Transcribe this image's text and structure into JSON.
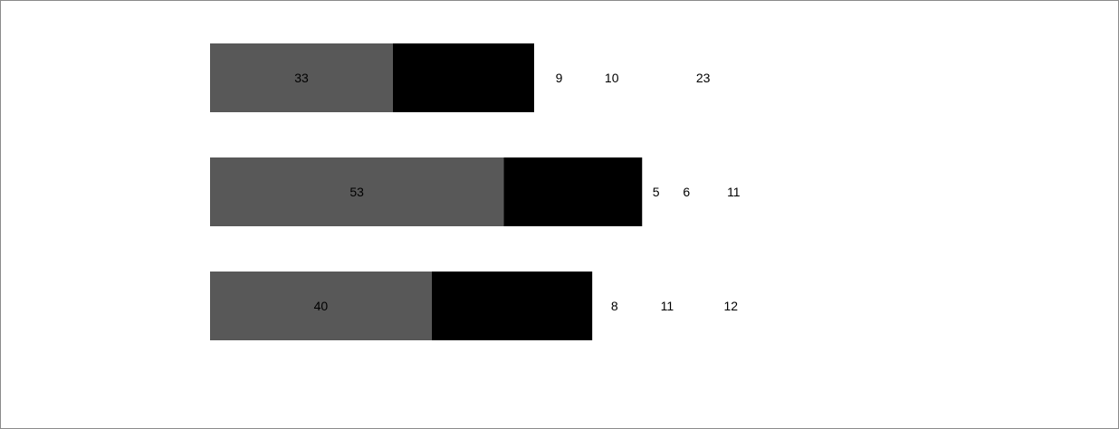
{
  "chart_data": {
    "type": "bar",
    "orientation": "horizontal",
    "stacked": true,
    "title": "",
    "xlabel": "",
    "ylabel": "",
    "grid": false,
    "legend": "none",
    "xlim": [
      0,
      100
    ],
    "categories": [
      "",
      "",
      ""
    ],
    "series": [
      {
        "color": "#585858",
        "values": [
          33,
          53,
          40
        ],
        "labels": [
          "33",
          "53",
          "40"
        ]
      },
      {
        "color": "#000000",
        "values": [
          25.5,
          25,
          29
        ],
        "labels": [
          "",
          "",
          ""
        ]
      },
      {
        "color": "#ffffff",
        "values": [
          9,
          5,
          8
        ],
        "labels": [
          "9",
          "5",
          "8"
        ]
      },
      {
        "color": "#ffffff",
        "values": [
          10,
          6,
          11
        ],
        "labels": [
          "10",
          "6",
          "11"
        ]
      },
      {
        "color": "#ffffff",
        "values": [
          23,
          11,
          12
        ],
        "labels": [
          "23",
          "11",
          "12"
        ]
      }
    ]
  }
}
